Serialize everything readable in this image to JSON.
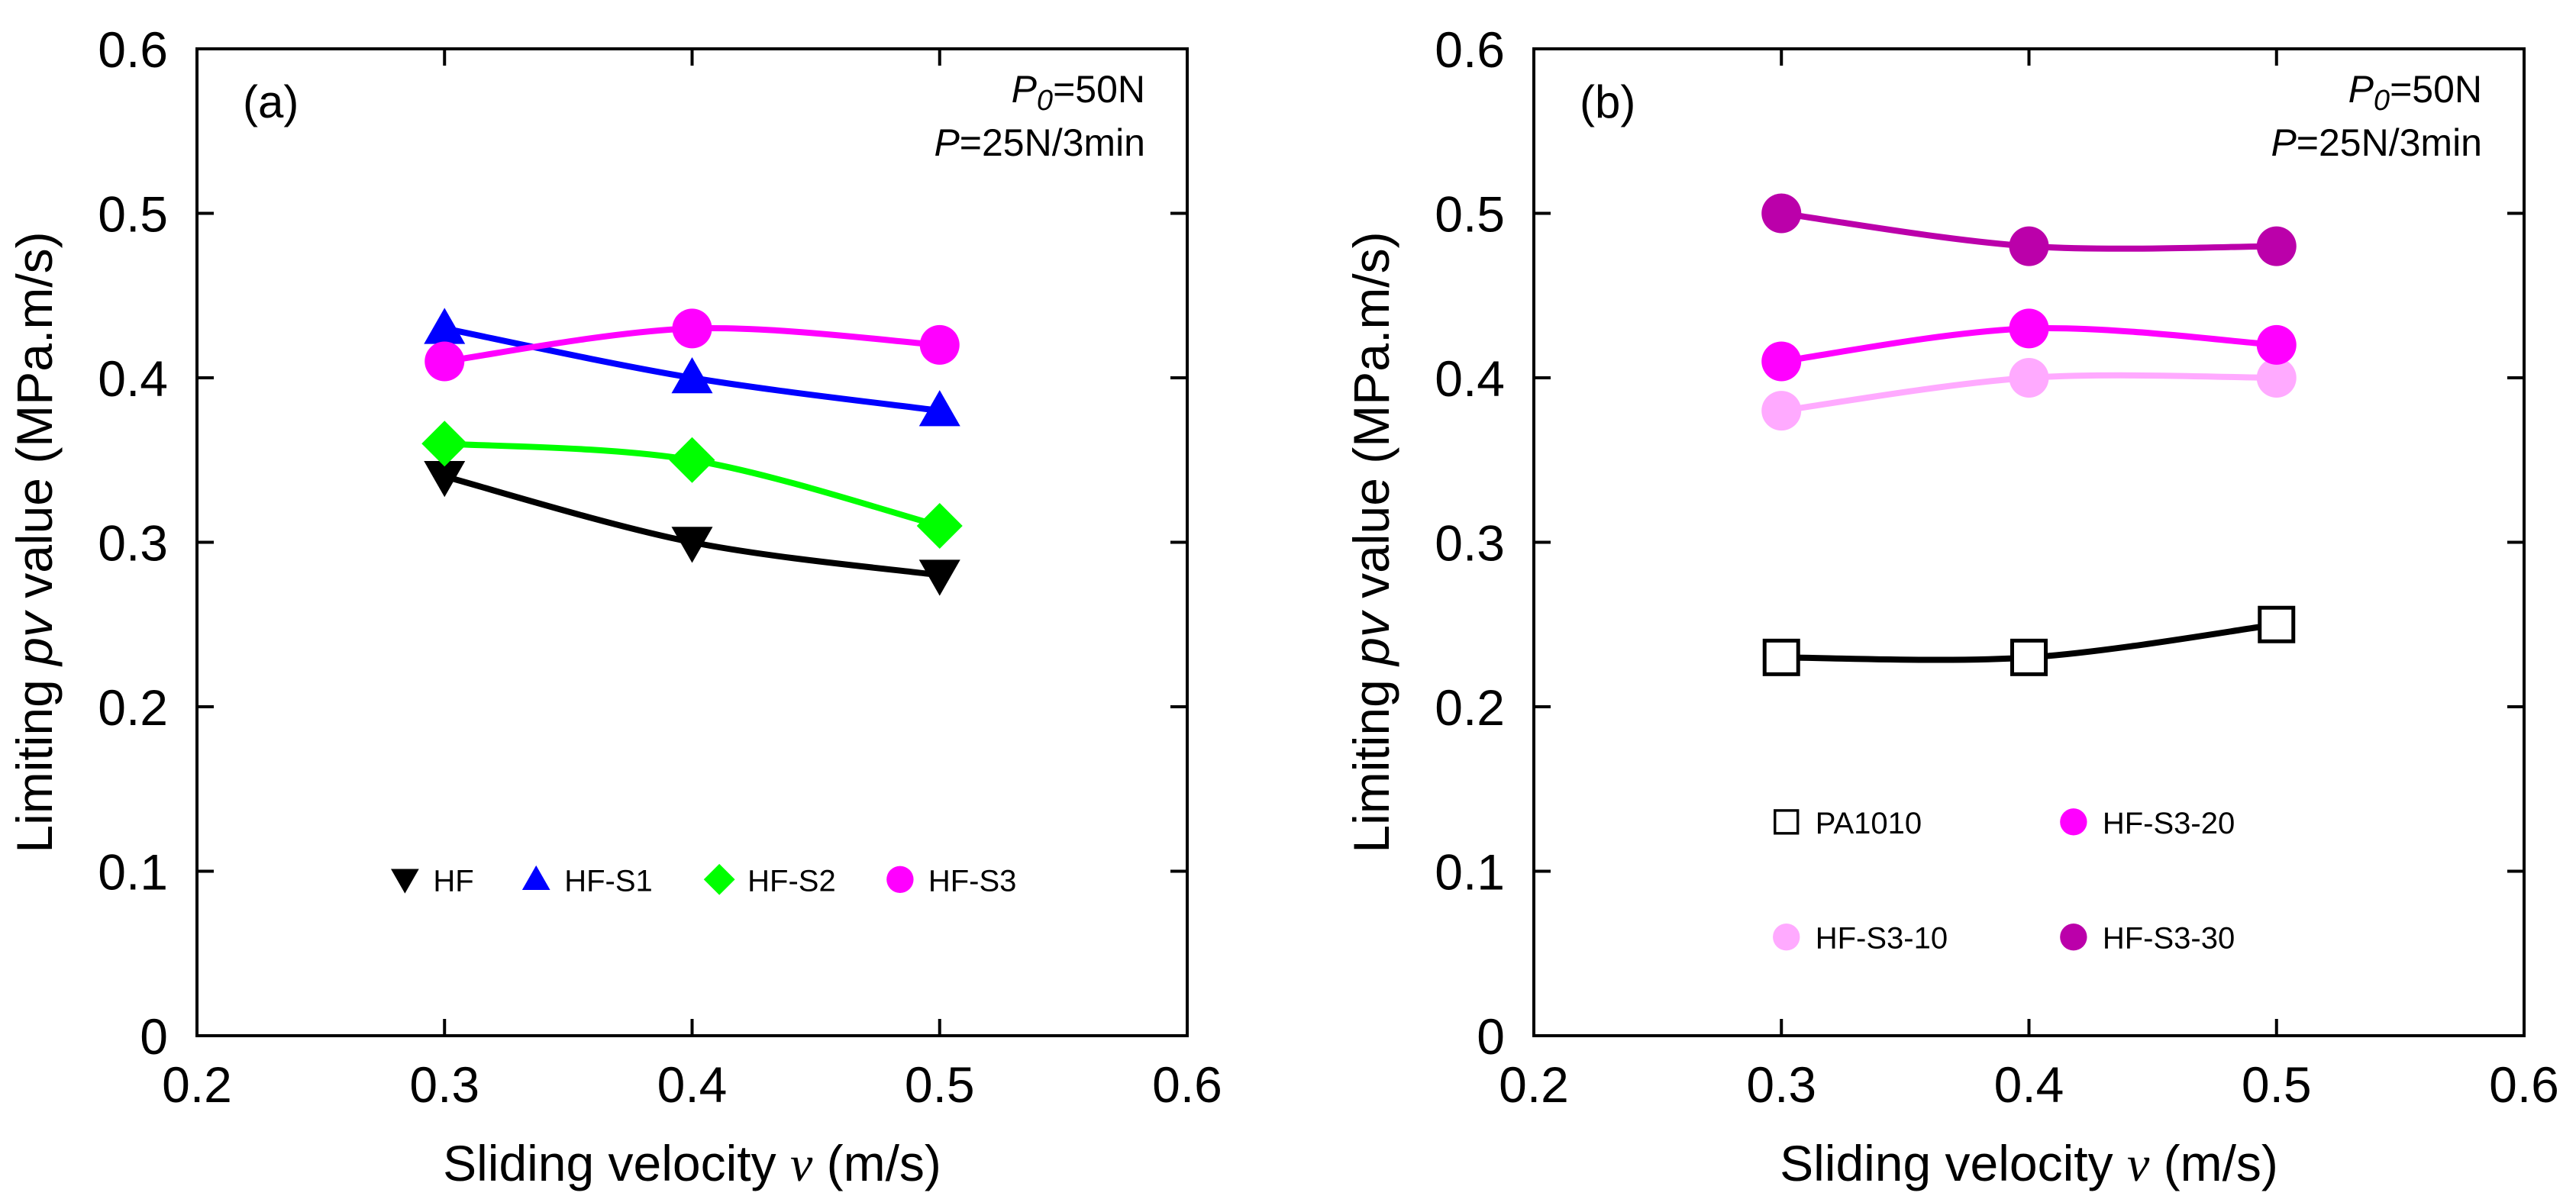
{
  "chart_data": [
    {
      "type": "line",
      "panel_label": "(a)",
      "annotation": {
        "line1_var": "P",
        "line1_sub": "0",
        "line1_value": "=50N",
        "line2_var": "P",
        "line2_value": "=25N/3min"
      },
      "xlabel": "Sliding velocity",
      "xlabel_var": "v",
      "xlabel_unit": "(m/s)",
      "ylabel_prefix": "Limiting",
      "ylabel_var": "pv",
      "ylabel_suffix": "value (MPa.m/s)",
      "xlim": [
        0.2,
        0.6
      ],
      "ylim": [
        0,
        0.6
      ],
      "xticks": [
        "0.2",
        "0.3",
        "0.4",
        "0.5",
        "0.6"
      ],
      "yticks": [
        "0",
        "0.1",
        "0.2",
        "0.3",
        "0.4",
        "0.5",
        "0.6"
      ],
      "x": [
        0.3,
        0.4,
        0.5
      ],
      "legend": {
        "layout": "row",
        "y": 0.095
      },
      "series": [
        {
          "name": "HF",
          "values": [
            0.34,
            0.3,
            0.28
          ],
          "color": "#000000",
          "marker": "triangle-down"
        },
        {
          "name": "HF-S1",
          "values": [
            0.43,
            0.4,
            0.38
          ],
          "color": "#0000ff",
          "marker": "triangle-up"
        },
        {
          "name": "HF-S2",
          "values": [
            0.36,
            0.35,
            0.31
          ],
          "color": "#00ff00",
          "marker": "diamond"
        },
        {
          "name": "HF-S3",
          "values": [
            0.41,
            0.43,
            0.42
          ],
          "color": "#ff00ff",
          "marker": "circle"
        }
      ]
    },
    {
      "type": "line",
      "panel_label": "(b)",
      "annotation": {
        "line1_var": "P",
        "line1_sub": "0",
        "line1_value": "=50N",
        "line2_var": "P",
        "line2_value": "=25N/3min"
      },
      "xlabel": "Sliding velocity",
      "xlabel_var": "v",
      "xlabel_unit": "(m/s)",
      "ylabel_prefix": "Limiting",
      "ylabel_var": "pv",
      "ylabel_suffix": "value (MPa.m/s)",
      "xlim": [
        0.2,
        0.6
      ],
      "ylim": [
        0,
        0.6
      ],
      "xticks": [
        "0.2",
        "0.3",
        "0.4",
        "0.5",
        "0.6"
      ],
      "yticks": [
        "0",
        "0.1",
        "0.2",
        "0.3",
        "0.4",
        "0.5",
        "0.6"
      ],
      "x": [
        0.3,
        0.4,
        0.5
      ],
      "legend": {
        "layout": "grid"
      },
      "series": [
        {
          "name": "PA1010",
          "values": [
            0.23,
            0.23,
            0.25
          ],
          "color": "#000000",
          "marker": "square-open"
        },
        {
          "name": "HF-S3-10",
          "values": [
            0.38,
            0.4,
            0.4
          ],
          "color": "#ffaaff",
          "marker": "circle"
        },
        {
          "name": "HF-S3-20",
          "values": [
            0.41,
            0.43,
            0.42
          ],
          "color": "#ff00ff",
          "marker": "circle"
        },
        {
          "name": "HF-S3-30",
          "values": [
            0.5,
            0.48,
            0.48
          ],
          "color": "#bb00aa",
          "marker": "circle"
        }
      ]
    }
  ]
}
